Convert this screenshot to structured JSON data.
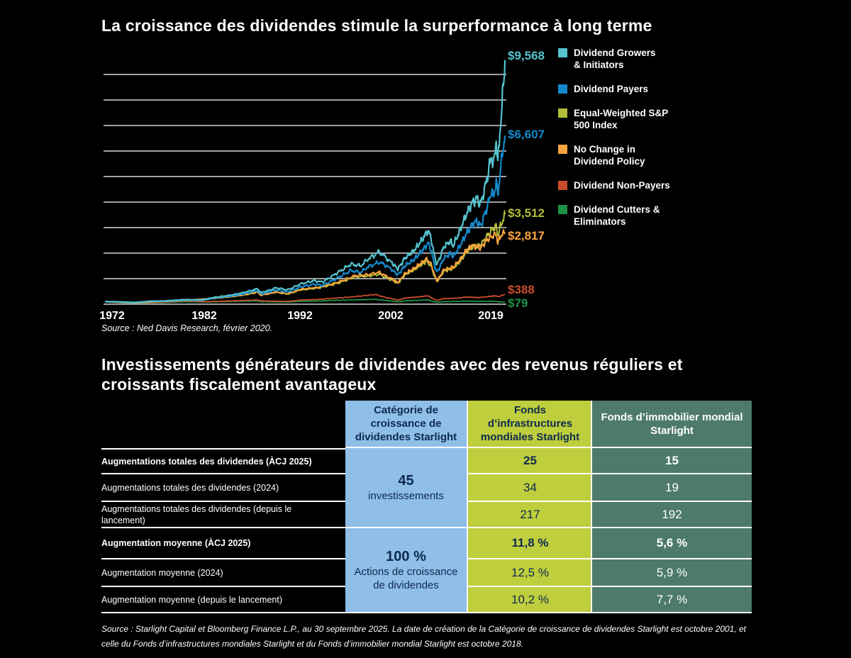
{
  "chart_section": {
    "title": "La croissance des dividendes stimule la surperformance à long terme",
    "source": "Source : Ned Davis Research, février 2020."
  },
  "chart_data": {
    "type": "line",
    "title": "La croissance des dividendes stimule la surperformance à long terme",
    "x_tick_labels": [
      "1972",
      "1982",
      "1992",
      "2002",
      "2019"
    ],
    "x_range": [
      1972,
      2020.15
    ],
    "y_range": [
      0,
      10000
    ],
    "gridline_step": 1000,
    "grid": "horizontal-white-lines",
    "legend_position": "right",
    "series": [
      {
        "name": "Dividend Growers & Initiators",
        "legend_lines": [
          "Dividend Growers",
          "& Initiators"
        ],
        "color": "#56C3CE",
        "end_label": "$9,568",
        "end_value": 9568,
        "points": [
          [
            1972,
            100
          ],
          [
            1973.5,
            92
          ],
          [
            1974.9,
            68
          ],
          [
            1976.5,
            115
          ],
          [
            1978,
            128
          ],
          [
            1980,
            180
          ],
          [
            1981.7,
            165
          ],
          [
            1983,
            265
          ],
          [
            1985,
            370
          ],
          [
            1987.6,
            610
          ],
          [
            1987.9,
            450
          ],
          [
            1989.5,
            640
          ],
          [
            1990.7,
            560
          ],
          [
            1992,
            790
          ],
          [
            1993.5,
            920
          ],
          [
            1994.4,
            870
          ],
          [
            1996,
            1220
          ],
          [
            1997.5,
            1570
          ],
          [
            1998.6,
            1500
          ],
          [
            1999.3,
            1750
          ],
          [
            2000.6,
            2050
          ],
          [
            2001.1,
            1900
          ],
          [
            2001.7,
            1700
          ],
          [
            2002.9,
            1380
          ],
          [
            2004,
            1800
          ],
          [
            2005.5,
            2100
          ],
          [
            2007,
            2600
          ],
          [
            2007.8,
            2900
          ],
          [
            2008.3,
            2550
          ],
          [
            2008.9,
            1800
          ],
          [
            2009.2,
            1550
          ],
          [
            2010.3,
            2250
          ],
          [
            2011.4,
            2480
          ],
          [
            2011.8,
            2280
          ],
          [
            2012.8,
            2850
          ],
          [
            2013.8,
            3450
          ],
          [
            2014.8,
            3950
          ],
          [
            2015.6,
            4150
          ],
          [
            2016.2,
            3900
          ],
          [
            2017.2,
            4850
          ],
          [
            2018,
            5850
          ],
          [
            2018.3,
            5400
          ],
          [
            2018.75,
            6450
          ],
          [
            2019,
            5500
          ],
          [
            2019.35,
            6800
          ],
          [
            2019.6,
            7500
          ],
          [
            2019.85,
            8400
          ],
          [
            2020,
            9000
          ],
          [
            2020.15,
            9568
          ]
        ]
      },
      {
        "name": "Dividend Payers",
        "legend_lines": [
          "Dividend Payers"
        ],
        "color": "#1489CB",
        "end_label": "$6,607",
        "end_value": 6607,
        "points": [
          [
            1972,
            100
          ],
          [
            1973.5,
            90
          ],
          [
            1974.9,
            65
          ],
          [
            1976.5,
            108
          ],
          [
            1978,
            118
          ],
          [
            1980,
            165
          ],
          [
            1981.7,
            150
          ],
          [
            1983,
            240
          ],
          [
            1985,
            330
          ],
          [
            1987.6,
            540
          ],
          [
            1987.9,
            400
          ],
          [
            1989.5,
            560
          ],
          [
            1990.7,
            480
          ],
          [
            1992,
            670
          ],
          [
            1993.5,
            780
          ],
          [
            1994.4,
            740
          ],
          [
            1996,
            1020
          ],
          [
            1997.5,
            1320
          ],
          [
            1998.6,
            1250
          ],
          [
            1999.3,
            1450
          ],
          [
            2000.6,
            1650
          ],
          [
            2001.4,
            1500
          ],
          [
            2002.9,
            1150
          ],
          [
            2004,
            1500
          ],
          [
            2005.5,
            1750
          ],
          [
            2007,
            2150
          ],
          [
            2007.8,
            2400
          ],
          [
            2008.3,
            2100
          ],
          [
            2008.9,
            1450
          ],
          [
            2009.2,
            1250
          ],
          [
            2010.3,
            1800
          ],
          [
            2011.4,
            2000
          ],
          [
            2011.8,
            1850
          ],
          [
            2012.8,
            2250
          ],
          [
            2013.8,
            2700
          ],
          [
            2014.8,
            3100
          ],
          [
            2015.6,
            3250
          ],
          [
            2016.2,
            3050
          ],
          [
            2017.2,
            3750
          ],
          [
            2018,
            4450
          ],
          [
            2018.3,
            4150
          ],
          [
            2018.75,
            4850
          ],
          [
            2019,
            4250
          ],
          [
            2019.35,
            5100
          ],
          [
            2019.6,
            5600
          ],
          [
            2019.85,
            6100
          ],
          [
            2020.15,
            6607
          ]
        ]
      },
      {
        "name": "Equal-Weighted S&P 500 Index",
        "legend_lines": [
          "Equal-Weighted S&P",
          "500 Index"
        ],
        "color": "#B2BE37",
        "end_label": "$3,512",
        "end_value": 3512,
        "points": [
          [
            1972,
            100
          ],
          [
            1974.9,
            62
          ],
          [
            1978,
            110
          ],
          [
            1980,
            150
          ],
          [
            1983,
            225
          ],
          [
            1985,
            300
          ],
          [
            1987.6,
            470
          ],
          [
            1987.9,
            350
          ],
          [
            1989.5,
            470
          ],
          [
            1990.7,
            400
          ],
          [
            1992,
            560
          ],
          [
            1994,
            640
          ],
          [
            1996,
            820
          ],
          [
            1998,
            1080
          ],
          [
            1999.3,
            1100
          ],
          [
            2000.6,
            1180
          ],
          [
            2002.9,
            820
          ],
          [
            2004,
            1150
          ],
          [
            2005.5,
            1350
          ],
          [
            2007.5,
            1700
          ],
          [
            2008.3,
            1500
          ],
          [
            2009.2,
            900
          ],
          [
            2010.3,
            1300
          ],
          [
            2011.8,
            1400
          ],
          [
            2012.8,
            1650
          ],
          [
            2013.8,
            2000
          ],
          [
            2014.8,
            2250
          ],
          [
            2016.2,
            2300
          ],
          [
            2017.2,
            2650
          ],
          [
            2018,
            2900
          ],
          [
            2018.75,
            3050
          ],
          [
            2019,
            2700
          ],
          [
            2019.5,
            3100
          ],
          [
            2019.85,
            3300
          ],
          [
            2020.15,
            3512
          ]
        ]
      },
      {
        "name": "No Change in Dividend Policy",
        "legend_lines": [
          "No Change in",
          "Dividend Policy"
        ],
        "color": "#F8A33D",
        "end_label": "$2,817",
        "end_value": 2817,
        "points": [
          [
            1972,
            100
          ],
          [
            1974.9,
            64
          ],
          [
            1978,
            112
          ],
          [
            1980,
            155
          ],
          [
            1983,
            230
          ],
          [
            1985,
            310
          ],
          [
            1987.6,
            480
          ],
          [
            1987.9,
            360
          ],
          [
            1989.5,
            480
          ],
          [
            1990.7,
            410
          ],
          [
            1992,
            580
          ],
          [
            1994,
            660
          ],
          [
            1996,
            850
          ],
          [
            1998,
            1120
          ],
          [
            1999.3,
            1150
          ],
          [
            2000.6,
            1250
          ],
          [
            2002.9,
            850
          ],
          [
            2004,
            1180
          ],
          [
            2005.5,
            1400
          ],
          [
            2007.5,
            1780
          ],
          [
            2008.3,
            1550
          ],
          [
            2009.2,
            920
          ],
          [
            2010.3,
            1350
          ],
          [
            2011.8,
            1450
          ],
          [
            2012.8,
            1700
          ],
          [
            2013.8,
            2050
          ],
          [
            2014.8,
            2300
          ],
          [
            2016.2,
            2200
          ],
          [
            2017.2,
            2500
          ],
          [
            2018,
            2650
          ],
          [
            2018.75,
            2750
          ],
          [
            2019,
            2400
          ],
          [
            2019.5,
            2700
          ],
          [
            2019.85,
            2750
          ],
          [
            2020.15,
            2817
          ]
        ]
      },
      {
        "name": "Dividend Non-Payers",
        "legend_lines": [
          "Dividend Non-Payers"
        ],
        "color": "#C94D2B",
        "end_label": "$388",
        "end_value": 388,
        "points": [
          [
            1972,
            100
          ],
          [
            1974.9,
            50
          ],
          [
            1978,
            85
          ],
          [
            1980,
            130
          ],
          [
            1982,
            100
          ],
          [
            1984,
            120
          ],
          [
            1987.6,
            170
          ],
          [
            1987.9,
            130
          ],
          [
            1990.7,
            110
          ],
          [
            1992,
            160
          ],
          [
            1994,
            190
          ],
          [
            1996,
            240
          ],
          [
            1998,
            300
          ],
          [
            2000.2,
            380
          ],
          [
            2001.5,
            250
          ],
          [
            2002.9,
            160
          ],
          [
            2004,
            240
          ],
          [
            2006,
            280
          ],
          [
            2007.8,
            330
          ],
          [
            2009.2,
            150
          ],
          [
            2010.3,
            220
          ],
          [
            2012,
            230
          ],
          [
            2014,
            280
          ],
          [
            2016,
            260
          ],
          [
            2017.5,
            300
          ],
          [
            2018.75,
            330
          ],
          [
            2019,
            290
          ],
          [
            2019.5,
            330
          ],
          [
            2020.15,
            388
          ]
        ]
      },
      {
        "name": "Dividend Cutters & Eliminators",
        "legend_lines": [
          "Dividend Cutters &",
          "Eliminators"
        ],
        "color": "#1D9347",
        "end_label": "$79",
        "end_value": 79,
        "points": [
          [
            1972,
            100
          ],
          [
            1974.9,
            45
          ],
          [
            1978,
            70
          ],
          [
            1980,
            100
          ],
          [
            1982,
            85
          ],
          [
            1984,
            100
          ],
          [
            1987.6,
            130
          ],
          [
            1987.9,
            100
          ],
          [
            1990.7,
            85
          ],
          [
            1992,
            110
          ],
          [
            1994,
            125
          ],
          [
            1996,
            150
          ],
          [
            1998,
            170
          ],
          [
            2000.2,
            190
          ],
          [
            2001.5,
            140
          ],
          [
            2002.9,
            95
          ],
          [
            2004,
            130
          ],
          [
            2006,
            150
          ],
          [
            2007.8,
            170
          ],
          [
            2009.2,
            75
          ],
          [
            2010.3,
            100
          ],
          [
            2012,
            105
          ],
          [
            2014,
            120
          ],
          [
            2016,
            110
          ],
          [
            2017.5,
            115
          ],
          [
            2018.75,
            110
          ],
          [
            2019,
            95
          ],
          [
            2019.5,
            90
          ],
          [
            2020.15,
            79
          ]
        ]
      }
    ]
  },
  "table_section": {
    "title_lines": [
      "Investissements générateurs de dividendes avec des revenus réguliers et",
      "croissants fiscalement avantageux"
    ],
    "columns": [
      {
        "label": "Catégorie de croissance de dividendes Starlight",
        "bg": "#8FBEE8",
        "text": "#0D2B50"
      },
      {
        "label": "Fonds d’infrastructures mondiales Starlight",
        "bg": "#BFCE3C",
        "text": "#0D2B50"
      },
      {
        "label": "Fonds d’immobilier mondial Starlight",
        "bg": "#4E7A6A",
        "text": "#FFFFFF"
      }
    ],
    "row_labels": [
      {
        "text": "Augmentations totales des dividendes (ÀCJ 2025)",
        "bold": true
      },
      {
        "text": "Augmentations totales des dividendes (2024)",
        "bold": false
      },
      {
        "text": "Augmentations totales des dividendes (depuis le lancement)",
        "bold": false
      },
      {
        "text": "Augmentation moyenne (ÀCJ 2025)",
        "bold": true
      },
      {
        "text": "Augmentation moyenne (2024)",
        "bold": false
      },
      {
        "text": "Augmentation moyenne (depuis le lancement)",
        "bold": false
      }
    ],
    "merged_cells": [
      {
        "big": "45",
        "small": "investissements"
      },
      {
        "big": "100 %",
        "small": "Actions de croissance de dividendes"
      }
    ],
    "infra_values": [
      "25",
      "34",
      "217",
      "11,8 %",
      "12,5 %",
      "10,2 %"
    ],
    "realestate_values": [
      "15",
      "19",
      "192",
      "5,6 %",
      "5,9 %",
      "7,7 %"
    ],
    "bold_rows": [
      0,
      3
    ],
    "source": "Source : Starlight Capital et Bloomberg Finance L.P., au 30 septembre 2025. La date de création de la Catégorie de croissance de dividendes Starlight est octobre 2001, et celle du Fonds d’infrastructures mondiales Starlight et du Fonds d’immobilier mondial Starlight est octobre 2018."
  }
}
